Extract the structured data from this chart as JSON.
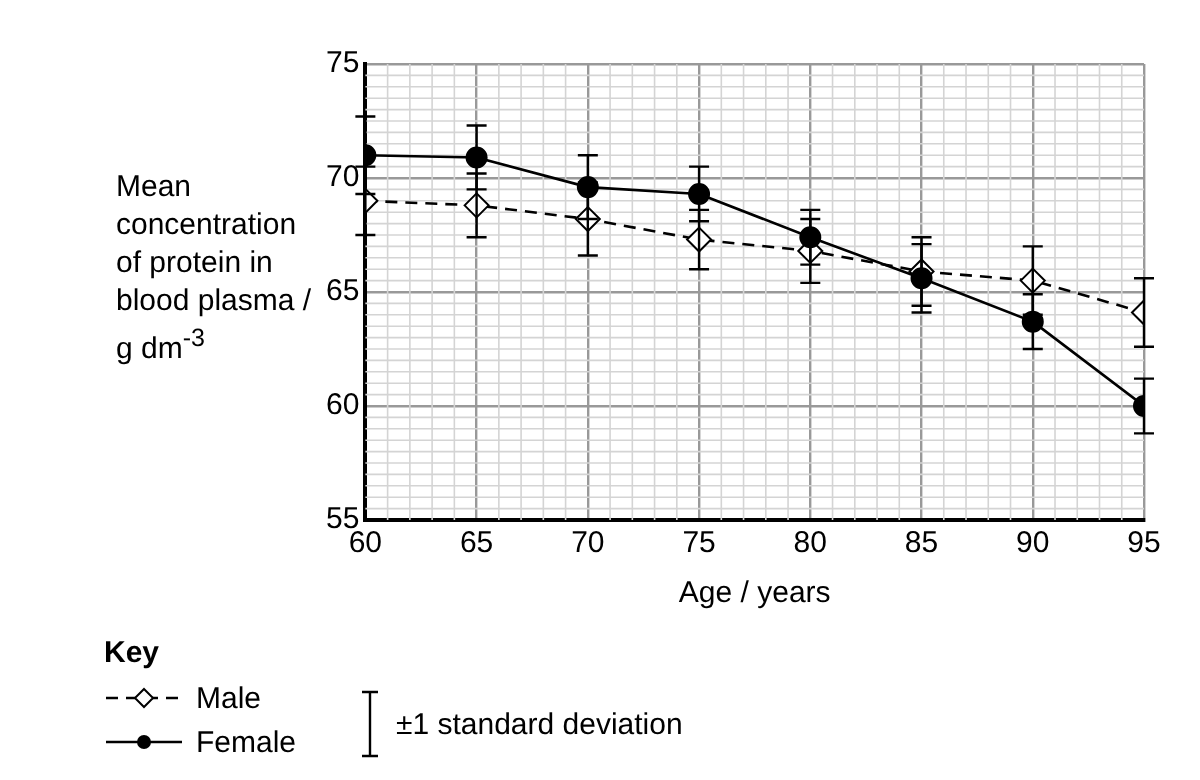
{
  "chart_data": {
    "type": "line",
    "xlabel": "Age / years",
    "ylabel": "Mean concentration of protein in blood plasma / g dm$^{-3}$",
    "x": [
      60,
      65,
      70,
      75,
      80,
      85,
      90,
      95
    ],
    "series": [
      {
        "name": "Male",
        "color": "#000000",
        "marker": "diamond",
        "line_style": "dashed",
        "values": [
          69.0,
          68.8,
          68.2,
          67.3,
          66.8,
          65.9,
          65.5,
          64.1
        ],
        "errors": [
          1.5,
          1.4,
          1.6,
          1.3,
          1.4,
          1.5,
          1.5,
          1.5
        ]
      },
      {
        "name": "Female",
        "color": "#000000",
        "marker": "circle",
        "line_style": "solid",
        "values": [
          71.0,
          70.9,
          69.6,
          69.3,
          67.4,
          65.6,
          63.7,
          60.0
        ],
        "errors": [
          1.7,
          1.4,
          1.4,
          1.2,
          1.2,
          1.5,
          1.2,
          1.2
        ]
      }
    ],
    "xlim": [
      60,
      95
    ],
    "xticks": [
      60,
      65,
      70,
      75,
      80,
      85,
      90,
      95
    ],
    "ylim": [
      55,
      75
    ],
    "yticks": [
      55,
      60,
      65,
      70,
      75
    ],
    "grid": true,
    "legend": "bottom left",
    "legend_title": "Key",
    "annotations": [
      "±1 standard deviation"
    ]
  }
}
